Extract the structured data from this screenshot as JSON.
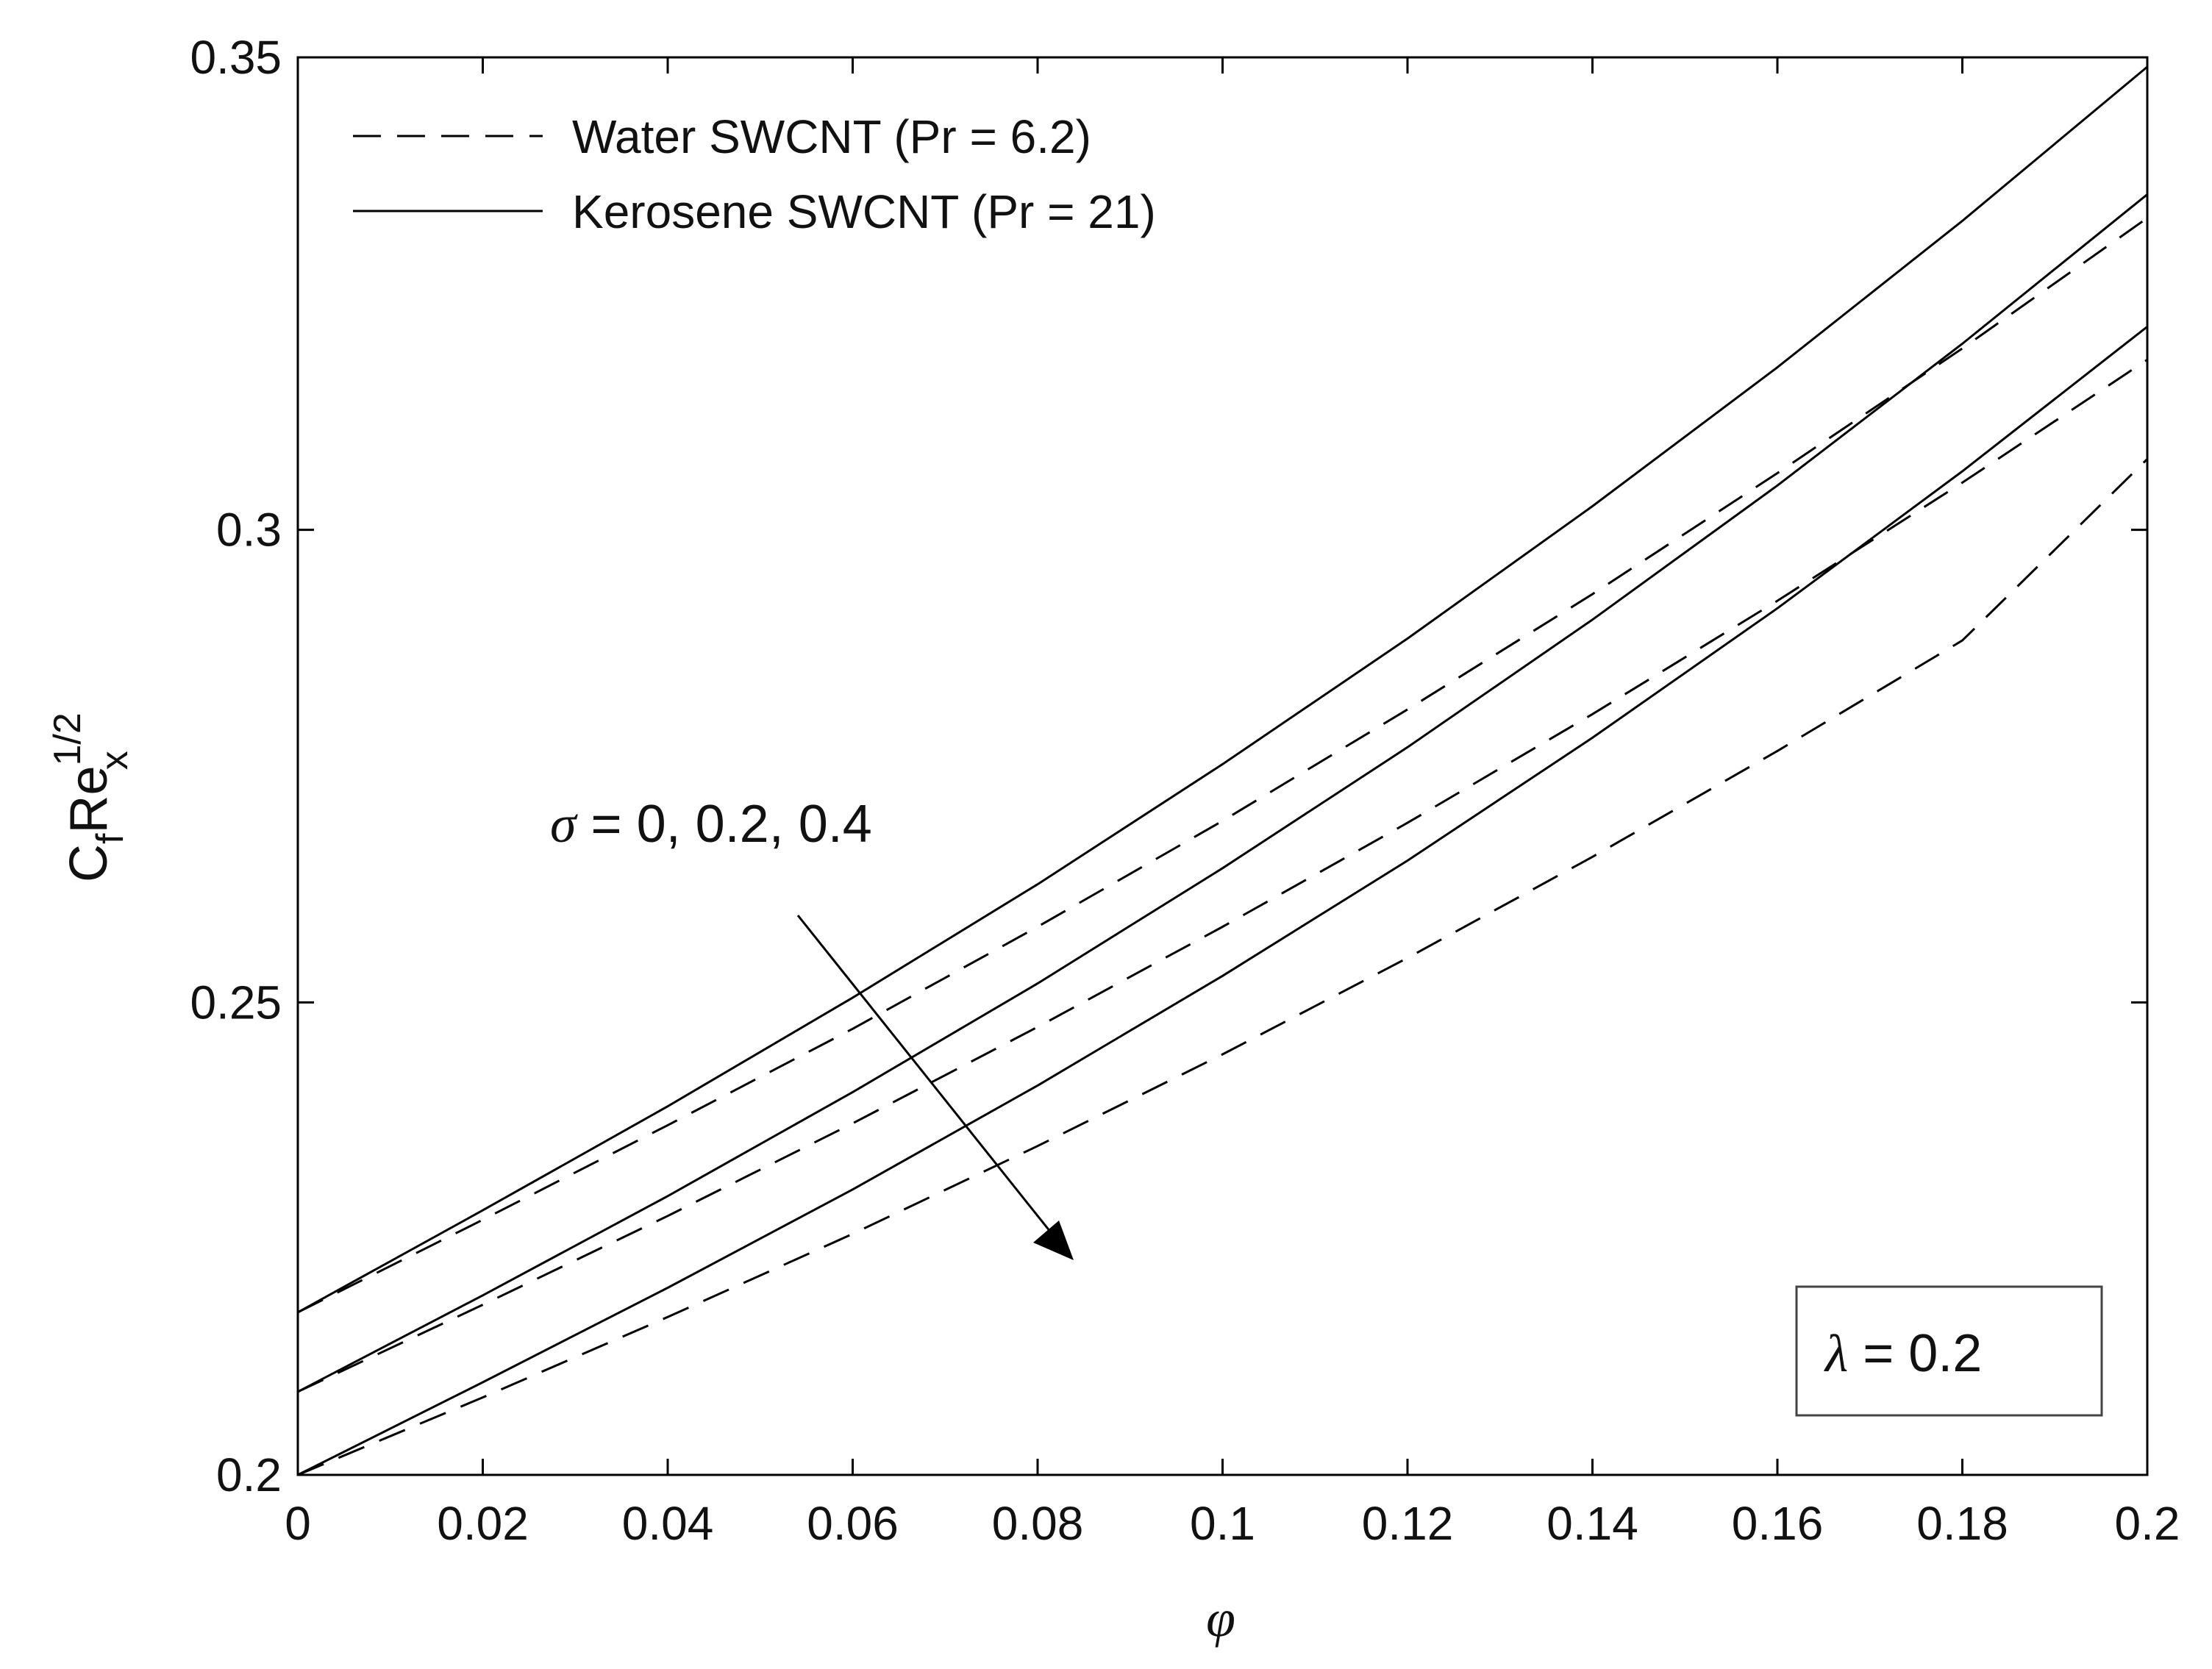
{
  "chart_data": {
    "type": "line",
    "title": "",
    "xlabel": "φ",
    "ylabel": {
      "base": "C",
      "sub_f": "f",
      "mid": "Re",
      "sup": "1/2",
      "sub_x": "x"
    },
    "xlim": [
      0,
      0.2
    ],
    "ylim": [
      0.2,
      0.35
    ],
    "xticks": [
      0,
      0.02,
      0.04,
      0.06,
      0.08,
      0.1,
      0.12,
      0.14,
      0.16,
      0.18,
      0.2
    ],
    "xtick_labels": [
      "0",
      "0.02",
      "0.04",
      "0.06",
      "0.08",
      "0.1",
      "0.12",
      "0.14",
      "0.16",
      "0.18",
      "0.2"
    ],
    "yticks": [
      0.2,
      0.25,
      0.3,
      0.35
    ],
    "ytick_labels": [
      "0.2",
      "0.25",
      "0.3",
      "0.35"
    ],
    "grid": false,
    "legend": {
      "position": "top-left",
      "entries": [
        {
          "label": "Water SWCNT (Pr = 6.2)",
          "style": "dashed"
        },
        {
          "label": "Kerosene SWCNT (Pr = 21)",
          "style": "solid"
        }
      ]
    },
    "x": [
      0,
      0.02,
      0.04,
      0.06,
      0.08,
      0.1,
      0.12,
      0.14,
      0.16,
      0.18,
      0.2
    ],
    "series": [
      {
        "name": "Kerosene SWCNT σ = 0",
        "style": "solid",
        "values": [
          0.2172,
          0.228,
          0.239,
          0.2505,
          0.2625,
          0.2752,
          0.2885,
          0.3025,
          0.3172,
          0.3327,
          0.349
        ]
      },
      {
        "name": "Kerosene SWCNT σ = 0.2",
        "style": "solid",
        "values": [
          0.2088,
          0.219,
          0.2295,
          0.2405,
          0.252,
          0.2642,
          0.277,
          0.2905,
          0.3047,
          0.3197,
          0.3355
        ]
      },
      {
        "name": "Kerosene SWCNT σ = 0.4",
        "style": "solid",
        "values": [
          0.2,
          0.2098,
          0.2198,
          0.2302,
          0.2412,
          0.2528,
          0.265,
          0.278,
          0.2917,
          0.3062,
          0.3215
        ]
      },
      {
        "name": "Water SWCNT σ = 0",
        "style": "dashed",
        "values": [
          0.2172,
          0.227,
          0.237,
          0.2472,
          0.258,
          0.2692,
          0.281,
          0.2932,
          0.306,
          0.3192,
          0.333
        ]
      },
      {
        "name": "Water SWCNT σ = 0.2",
        "style": "dashed",
        "values": [
          0.2088,
          0.218,
          0.2274,
          0.2372,
          0.2474,
          0.258,
          0.269,
          0.2805,
          0.2925,
          0.305,
          0.318
        ]
      },
      {
        "name": "Water SWCNT σ = 0.4",
        "style": "dashed",
        "values": [
          0.2,
          0.2082,
          0.2167,
          0.2255,
          0.2348,
          0.2445,
          0.2547,
          0.2654,
          0.2766,
          0.2883,
          0.3075
        ]
      }
    ],
    "annotations": {
      "sigma": {
        "symbol": "σ",
        "text": " = 0, 0.2, 0.4"
      },
      "lambda": {
        "symbol": "λ",
        "text": " = 0.2"
      }
    }
  }
}
